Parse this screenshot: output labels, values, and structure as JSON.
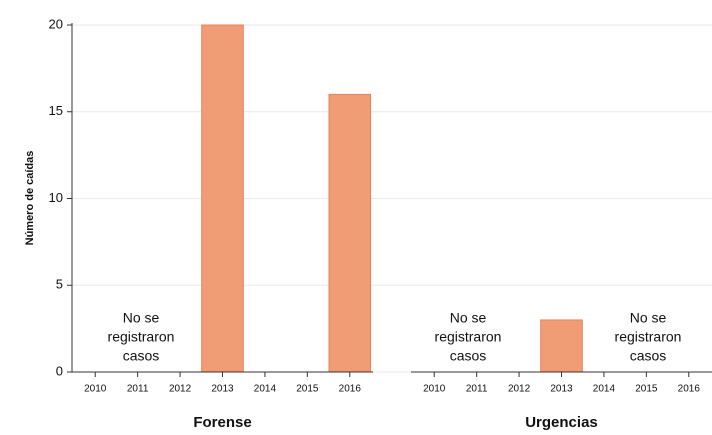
{
  "chart_data": [
    {
      "type": "bar",
      "title": "Forense",
      "ylabel": "Número de caídas",
      "categories": [
        "2010",
        "2011",
        "2012",
        "2013",
        "2014",
        "2015",
        "2016"
      ],
      "values": [
        0,
        0,
        0,
        20,
        0,
        0,
        16
      ],
      "color": "#f09c74",
      "ylim": [
        0,
        20
      ],
      "yticks": [
        0,
        5,
        10,
        15,
        20
      ],
      "grid": true,
      "annotations": [
        [
          "No se",
          "registraron",
          "casos"
        ]
      ]
    },
    {
      "type": "bar",
      "title": "Urgencias",
      "categories": [
        "2010",
        "2011",
        "2012",
        "2013",
        "2014",
        "2015",
        "2016"
      ],
      "values": [
        0,
        0,
        0,
        3,
        0,
        0,
        0
      ],
      "color": "#f09c74",
      "ylim": [
        0,
        20
      ],
      "yticks": [
        0,
        5,
        10,
        15,
        20
      ],
      "grid": true,
      "annotations": [
        [
          "No se",
          "registraron",
          "casos"
        ],
        [
          "No se",
          "registraron",
          "casos"
        ]
      ]
    }
  ]
}
